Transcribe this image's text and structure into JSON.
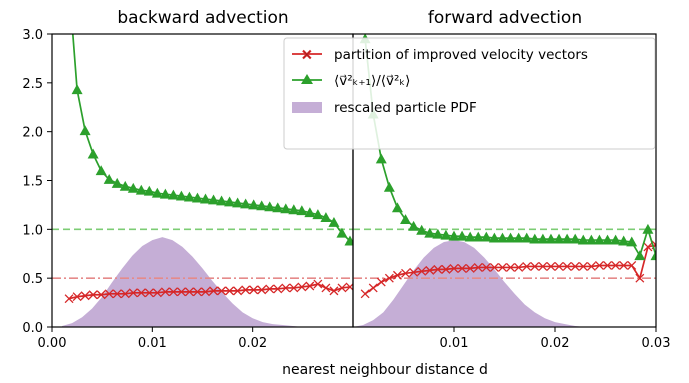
{
  "chart_data": [
    {
      "type": "line",
      "title": "backward advection",
      "xlim": [
        0.0,
        0.03
      ],
      "ylim": [
        0.0,
        3.0
      ],
      "x_ticks": [
        "0.00",
        "0.01",
        "0.02"
      ],
      "y_ticks": [
        "0.0",
        "0.5",
        "1.0",
        "1.5",
        "2.0",
        "2.5",
        "3.0"
      ],
      "grid": false,
      "legend": "top-right",
      "reference_lines": [
        {
          "y": 1.0,
          "color": "#7ccc74",
          "style": "dashed"
        },
        {
          "y": 0.5,
          "color": "#e58a8a",
          "style": "dashdot"
        }
      ],
      "series": [
        {
          "name": "partition of improved velocity vectors",
          "color": "#d62728",
          "marker": "x",
          "x": [
            0.0017,
            0.0025,
            0.0033,
            0.0041,
            0.0049,
            0.0057,
            0.0065,
            0.0073,
            0.0081,
            0.0089,
            0.0097,
            0.0105,
            0.0113,
            0.0121,
            0.0129,
            0.0137,
            0.0145,
            0.0153,
            0.0161,
            0.0169,
            0.0177,
            0.0185,
            0.0193,
            0.0201,
            0.0209,
            0.0217,
            0.0225,
            0.0233,
            0.0241,
            0.0249,
            0.0257,
            0.0265,
            0.0273,
            0.0281,
            0.0289,
            0.0297
          ],
          "y": [
            0.29,
            0.31,
            0.32,
            0.33,
            0.33,
            0.34,
            0.34,
            0.34,
            0.35,
            0.35,
            0.35,
            0.35,
            0.36,
            0.36,
            0.36,
            0.36,
            0.36,
            0.36,
            0.37,
            0.37,
            0.37,
            0.37,
            0.38,
            0.38,
            0.38,
            0.39,
            0.39,
            0.4,
            0.4,
            0.41,
            0.42,
            0.44,
            0.4,
            0.37,
            0.4,
            0.41
          ]
        },
        {
          "name": "⟨v⃗²ₖ₊₁⟩/⟨v⃗²ₖ⟩",
          "color": "#2ca02c",
          "marker": "^",
          "x": [
            0.0017,
            0.0025,
            0.0033,
            0.0041,
            0.0049,
            0.0057,
            0.0065,
            0.0073,
            0.0081,
            0.0089,
            0.0097,
            0.0105,
            0.0113,
            0.0121,
            0.0129,
            0.0137,
            0.0145,
            0.0153,
            0.0161,
            0.0169,
            0.0177,
            0.0185,
            0.0193,
            0.0201,
            0.0209,
            0.0217,
            0.0225,
            0.0233,
            0.0241,
            0.0249,
            0.0257,
            0.0265,
            0.0273,
            0.0281,
            0.0289,
            0.0297
          ],
          "y": [
            3.5,
            2.43,
            2.01,
            1.77,
            1.6,
            1.51,
            1.47,
            1.44,
            1.42,
            1.4,
            1.39,
            1.37,
            1.36,
            1.35,
            1.34,
            1.33,
            1.32,
            1.31,
            1.3,
            1.29,
            1.28,
            1.27,
            1.26,
            1.25,
            1.24,
            1.23,
            1.22,
            1.21,
            1.2,
            1.19,
            1.17,
            1.15,
            1.12,
            1.07,
            0.96,
            0.88
          ]
        }
      ],
      "areas": [
        {
          "name": "rescaled particle PDF",
          "color": "#c5aed6",
          "x": [
            0.001,
            0.002,
            0.003,
            0.004,
            0.005,
            0.006,
            0.007,
            0.008,
            0.009,
            0.01,
            0.011,
            0.012,
            0.013,
            0.014,
            0.015,
            0.016,
            0.017,
            0.018,
            0.019,
            0.02,
            0.021,
            0.022,
            0.023,
            0.024,
            0.025,
            0.026,
            0.027,
            0.028,
            0.029,
            0.03
          ],
          "y": [
            0.01,
            0.04,
            0.1,
            0.19,
            0.31,
            0.46,
            0.6,
            0.73,
            0.83,
            0.89,
            0.92,
            0.89,
            0.82,
            0.72,
            0.6,
            0.47,
            0.35,
            0.24,
            0.15,
            0.09,
            0.05,
            0.03,
            0.02,
            0.01,
            0.0,
            0.0,
            0.0,
            0.0,
            0.0,
            0.0
          ]
        }
      ]
    },
    {
      "type": "line",
      "title": "forward advection",
      "xlabel": "nearest neighbour distance d",
      "xlim": [
        0.0,
        0.03
      ],
      "ylim": [
        0.0,
        3.0
      ],
      "x_ticks": [
        "0.01",
        "0.02",
        "0.03"
      ],
      "grid": false,
      "reference_lines": [
        {
          "y": 1.0,
          "color": "#7ccc74",
          "style": "dashed"
        },
        {
          "y": 0.5,
          "color": "#e58a8a",
          "style": "dashdot"
        }
      ],
      "series": [
        {
          "name": "partition of improved velocity vectors",
          "color": "#d62728",
          "marker": "x",
          "x": [
            0.0012,
            0.002,
            0.0028,
            0.0036,
            0.0044,
            0.0052,
            0.006,
            0.0068,
            0.0076,
            0.0084,
            0.0092,
            0.01,
            0.0108,
            0.0116,
            0.0124,
            0.0132,
            0.014,
            0.0148,
            0.0156,
            0.0164,
            0.0172,
            0.018,
            0.0188,
            0.0196,
            0.0204,
            0.0212,
            0.022,
            0.0228,
            0.0236,
            0.0244,
            0.0252,
            0.026,
            0.0268,
            0.0276,
            0.0284,
            0.0292,
            0.03
          ],
          "y": [
            0.34,
            0.4,
            0.46,
            0.5,
            0.53,
            0.55,
            0.56,
            0.57,
            0.58,
            0.59,
            0.59,
            0.6,
            0.6,
            0.6,
            0.61,
            0.61,
            0.61,
            0.61,
            0.61,
            0.61,
            0.62,
            0.62,
            0.62,
            0.62,
            0.62,
            0.62,
            0.62,
            0.62,
            0.62,
            0.63,
            0.63,
            0.63,
            0.63,
            0.63,
            0.5,
            0.82,
            0.84
          ]
        },
        {
          "name": "⟨v⃗²ₖ₊₁⟩/⟨v⃗²ₖ⟩",
          "color": "#2ca02c",
          "marker": "^",
          "x": [
            0.0012,
            0.002,
            0.0028,
            0.0036,
            0.0044,
            0.0052,
            0.006,
            0.0068,
            0.0076,
            0.0084,
            0.0092,
            0.01,
            0.0108,
            0.0116,
            0.0124,
            0.0132,
            0.014,
            0.0148,
            0.0156,
            0.0164,
            0.0172,
            0.018,
            0.0188,
            0.0196,
            0.0204,
            0.0212,
            0.022,
            0.0228,
            0.0236,
            0.0244,
            0.0252,
            0.026,
            0.0268,
            0.0276,
            0.0284,
            0.0292,
            0.03
          ],
          "y": [
            2.95,
            2.18,
            1.72,
            1.43,
            1.22,
            1.1,
            1.03,
            0.99,
            0.96,
            0.95,
            0.94,
            0.93,
            0.93,
            0.92,
            0.92,
            0.92,
            0.91,
            0.91,
            0.91,
            0.91,
            0.91,
            0.9,
            0.9,
            0.9,
            0.9,
            0.9,
            0.9,
            0.89,
            0.89,
            0.89,
            0.89,
            0.89,
            0.88,
            0.87,
            0.73,
            1.0,
            0.73
          ]
        }
      ],
      "areas": [
        {
          "name": "rescaled particle PDF",
          "color": "#c5aed6",
          "x": [
            0.0,
            0.001,
            0.002,
            0.003,
            0.004,
            0.005,
            0.006,
            0.007,
            0.008,
            0.009,
            0.01,
            0.011,
            0.012,
            0.013,
            0.014,
            0.015,
            0.016,
            0.017,
            0.018,
            0.019,
            0.02,
            0.021,
            0.022,
            0.023,
            0.024,
            0.025,
            0.026,
            0.027,
            0.028,
            0.029,
            0.03
          ],
          "y": [
            0.0,
            0.02,
            0.07,
            0.15,
            0.28,
            0.43,
            0.58,
            0.71,
            0.81,
            0.87,
            0.89,
            0.87,
            0.81,
            0.71,
            0.59,
            0.46,
            0.34,
            0.23,
            0.15,
            0.09,
            0.05,
            0.03,
            0.01,
            0.0,
            0.0,
            0.0,
            0.0,
            0.0,
            0.0,
            0.0,
            0.0
          ]
        }
      ]
    }
  ],
  "legend": {
    "items": [
      {
        "label": "partition of improved velocity vectors",
        "color": "#d62728",
        "marker": "x"
      },
      {
        "label": "⟨v⃗²ₖ₊₁⟩/⟨v⃗²ₖ⟩",
        "color": "#2ca02c",
        "marker": "^"
      },
      {
        "label": "rescaled particle PDF",
        "color": "#c5aed6",
        "marker": "patch"
      }
    ]
  }
}
